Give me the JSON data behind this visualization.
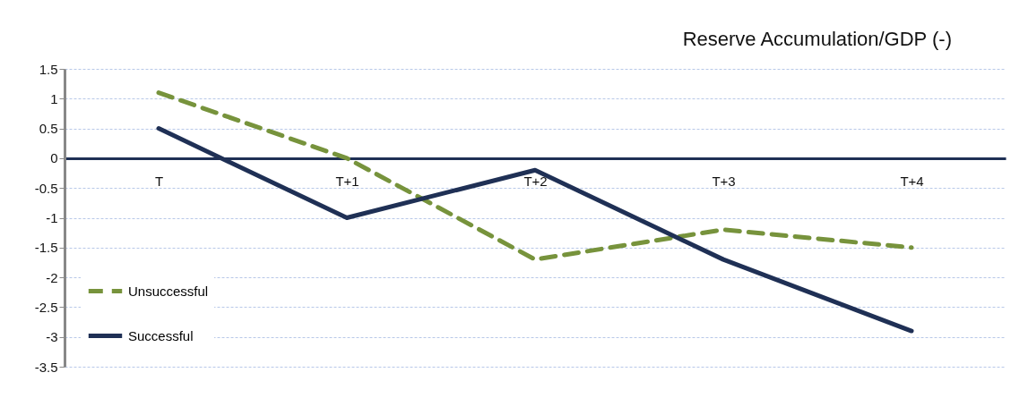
{
  "chart_data": {
    "type": "line",
    "title": "Reserve Accumulation/GDP (-)",
    "categories": [
      "T",
      "T+1",
      "T+2",
      "T+3",
      "T+4"
    ],
    "series": [
      {
        "name": "Unsuccessful",
        "color": "#77933c",
        "line_style": "dashed",
        "values": [
          1.1,
          0,
          -1.7,
          -1.2,
          -1.5
        ]
      },
      {
        "name": "Successful",
        "color": "#1f3055",
        "line_style": "solid",
        "values": [
          0.5,
          -1.0,
          -0.2,
          -1.7,
          -2.9
        ]
      }
    ],
    "ylim": [
      -3.5,
      1.5
    ],
    "yticks": [
      -3.5,
      -3,
      -2.5,
      -2,
      -1.5,
      -1,
      -0.5,
      0,
      0.5,
      1,
      1.5
    ],
    "grid": "y",
    "legend": "bottom left"
  }
}
